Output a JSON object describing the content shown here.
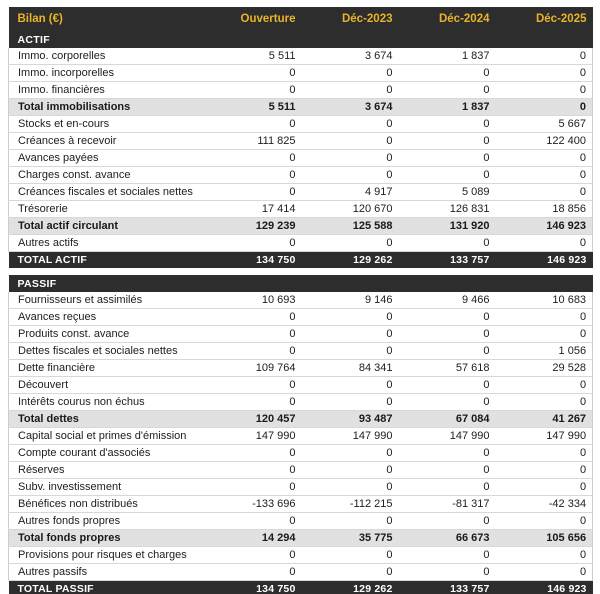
{
  "header": {
    "title": "Bilan (€)",
    "columns": [
      "Ouverture",
      "Déc-2023",
      "Déc-2024",
      "Déc-2025"
    ]
  },
  "sections": [
    {
      "header": "ACTIF",
      "rows": [
        {
          "label": "Immo. corporelles",
          "values": [
            "5 511",
            "3 674",
            "1 837",
            "0"
          ],
          "style": "normal"
        },
        {
          "label": "Immo. incorporelles",
          "values": [
            "0",
            "0",
            "0",
            "0"
          ],
          "style": "normal"
        },
        {
          "label": "Immo. financières",
          "values": [
            "0",
            "0",
            "0",
            "0"
          ],
          "style": "normal"
        },
        {
          "label": "Total immobilisations",
          "values": [
            "5 511",
            "3 674",
            "1 837",
            "0"
          ],
          "style": "subtotal"
        },
        {
          "label": "Stocks et en-cours",
          "values": [
            "0",
            "0",
            "0",
            "5 667"
          ],
          "style": "normal"
        },
        {
          "label": "Créances à recevoir",
          "values": [
            "111 825",
            "0",
            "0",
            "122 400"
          ],
          "style": "normal"
        },
        {
          "label": "Avances payées",
          "values": [
            "0",
            "0",
            "0",
            "0"
          ],
          "style": "normal"
        },
        {
          "label": "Charges const. avance",
          "values": [
            "0",
            "0",
            "0",
            "0"
          ],
          "style": "normal"
        },
        {
          "label": "Créances fiscales et sociales nettes",
          "values": [
            "0",
            "4 917",
            "5 089",
            "0"
          ],
          "style": "normal"
        },
        {
          "label": "Trésorerie",
          "values": [
            "17 414",
            "120 670",
            "126 831",
            "18 856"
          ],
          "style": "normal"
        },
        {
          "label": "Total actif circulant",
          "values": [
            "129 239",
            "125 588",
            "131 920",
            "146 923"
          ],
          "style": "subtotal"
        },
        {
          "label": "Autres actifs",
          "values": [
            "0",
            "0",
            "0",
            "0"
          ],
          "style": "normal"
        },
        {
          "label": "TOTAL ACTIF",
          "values": [
            "134 750",
            "129 262",
            "133 757",
            "146 923"
          ],
          "style": "grand"
        }
      ]
    },
    {
      "header": "PASSIF",
      "rows": [
        {
          "label": "Fournisseurs et assimilés",
          "values": [
            "10 693",
            "9 146",
            "9 466",
            "10 683"
          ],
          "style": "normal"
        },
        {
          "label": "Avances reçues",
          "values": [
            "0",
            "0",
            "0",
            "0"
          ],
          "style": "normal"
        },
        {
          "label": "Produits const. avance",
          "values": [
            "0",
            "0",
            "0",
            "0"
          ],
          "style": "normal"
        },
        {
          "label": "Dettes fiscales et sociales nettes",
          "values": [
            "0",
            "0",
            "0",
            "1 056"
          ],
          "style": "normal"
        },
        {
          "label": "Dette financière",
          "values": [
            "109 764",
            "84 341",
            "57 618",
            "29 528"
          ],
          "style": "normal"
        },
        {
          "label": "Découvert",
          "values": [
            "0",
            "0",
            "0",
            "0"
          ],
          "style": "normal"
        },
        {
          "label": "Intérêts courus non échus",
          "values": [
            "0",
            "0",
            "0",
            "0"
          ],
          "style": "normal"
        },
        {
          "label": "Total dettes",
          "values": [
            "120 457",
            "93 487",
            "67 084",
            "41 267"
          ],
          "style": "subtotal"
        },
        {
          "label": "Capital social et primes d'émission",
          "values": [
            "147 990",
            "147 990",
            "147 990",
            "147 990"
          ],
          "style": "normal"
        },
        {
          "label": "Compte courant d'associés",
          "values": [
            "0",
            "0",
            "0",
            "0"
          ],
          "style": "normal"
        },
        {
          "label": "Réserves",
          "values": [
            "0",
            "0",
            "0",
            "0"
          ],
          "style": "normal"
        },
        {
          "label": "Subv. investissement",
          "values": [
            "0",
            "0",
            "0",
            "0"
          ],
          "style": "normal"
        },
        {
          "label": "Bénéfices non distribués",
          "values": [
            "-133 696",
            "-112 215",
            "-81 317",
            "-42 334"
          ],
          "style": "normal"
        },
        {
          "label": "Autres fonds propres",
          "values": [
            "0",
            "0",
            "0",
            "0"
          ],
          "style": "normal"
        },
        {
          "label": "Total fonds propres",
          "values": [
            "14 294",
            "35 775",
            "66 673",
            "105 656"
          ],
          "style": "subtotal"
        },
        {
          "label": "Provisions pour risques et charges",
          "values": [
            "0",
            "0",
            "0",
            "0"
          ],
          "style": "normal"
        },
        {
          "label": "Autres passifs",
          "values": [
            "0",
            "0",
            "0",
            "0"
          ],
          "style": "normal"
        },
        {
          "label": "TOTAL PASSIF",
          "values": [
            "134 750",
            "129 262",
            "133 757",
            "146 923"
          ],
          "style": "grand"
        }
      ]
    }
  ],
  "colors": {
    "dark_bar_bg": "#2d2d2d",
    "header_accent": "#e9b32a",
    "subtotal_bg": "#e1e1e1",
    "row_border": "#d8d8d8"
  }
}
